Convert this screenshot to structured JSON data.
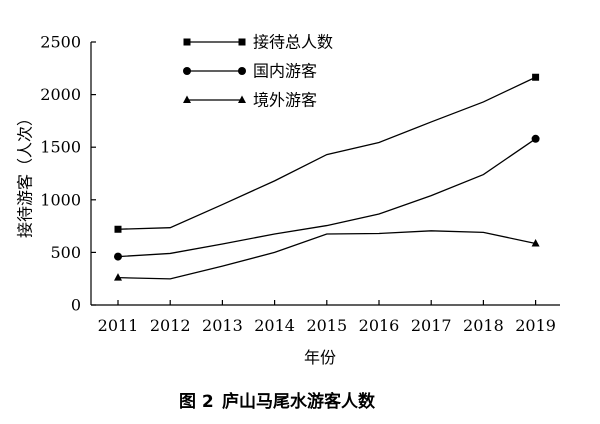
{
  "chart_data": {
    "type": "line",
    "title": "",
    "xlabel": "年份",
    "ylabel": "接待游客（人次）",
    "categories": [
      "2011",
      "2012",
      "2013",
      "2014",
      "2015",
      "2016",
      "2017",
      "2018",
      "2019"
    ],
    "ylim": [
      0,
      2500
    ],
    "yticks": [
      "0",
      "500",
      "1000",
      "1500",
      "2000",
      "2500"
    ],
    "grid": false,
    "legend_position": "top-left",
    "series": [
      {
        "name": "接待总人数",
        "marker": "square",
        "color": "#000000",
        "values": [
          720,
          735,
          955,
          1180,
          1430,
          1545,
          1740,
          1930,
          2165
        ]
      },
      {
        "name": "国内游客",
        "marker": "circle",
        "color": "#000000",
        "values": [
          460,
          490,
          580,
          675,
          755,
          865,
          1040,
          1240,
          1580
        ]
      },
      {
        "name": "境外游客",
        "marker": "triangle",
        "color": "#000000",
        "values": [
          260,
          248,
          370,
          500,
          675,
          680,
          705,
          690,
          585
        ]
      }
    ]
  },
  "caption": {
    "number": "图 2",
    "text": "庐山马尾水游客人数"
  }
}
